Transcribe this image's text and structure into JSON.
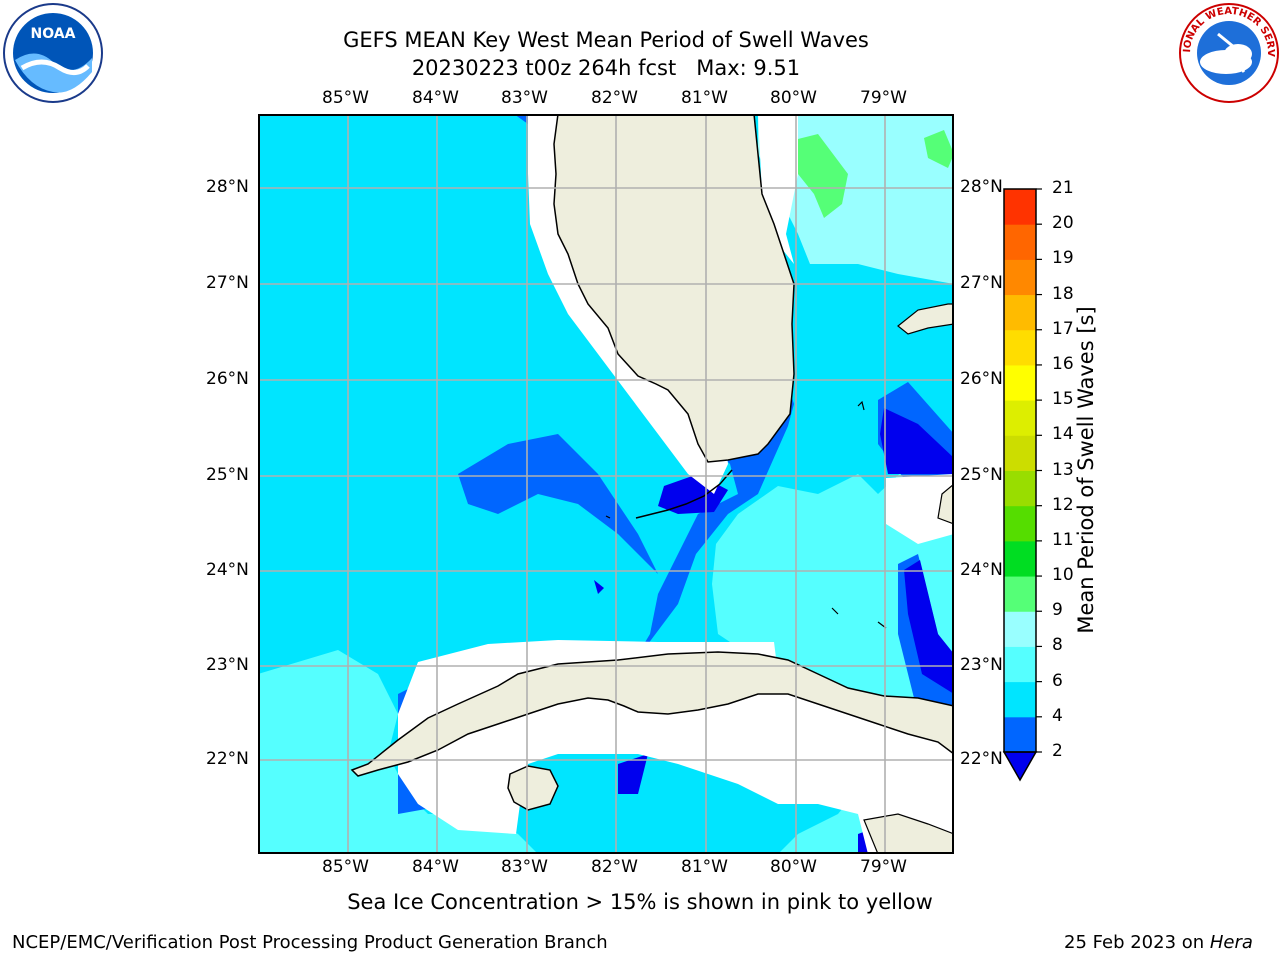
{
  "header": {
    "title_line1": "GEFS MEAN Key West Mean Period of Swell Waves",
    "title_line2": "20230223 t00z 264h fcst   Max: 9.51"
  },
  "logos": {
    "left": {
      "icon": "noaa-logo-icon",
      "text": "NOAA"
    },
    "right": {
      "icon": "nws-logo-icon",
      "text": "NATIONAL WEATHER SERVICE"
    }
  },
  "map": {
    "lon_labels": [
      "85°W",
      "84°W",
      "83°W",
      "82°W",
      "81°W",
      "80°W",
      "79°W"
    ],
    "lat_labels": [
      "28°N",
      "27°N",
      "26°N",
      "25°N",
      "24°N",
      "23°N",
      "22°N"
    ],
    "land_color": "#eeeedd",
    "grid_color": "#b0b0b0"
  },
  "colorbar": {
    "label": "Mean Period of Swell Waves [s]",
    "ticks": [
      "2",
      "4",
      "6",
      "8",
      "9",
      "10",
      "11",
      "12",
      "13",
      "14",
      "15",
      "16",
      "17",
      "18",
      "19",
      "20",
      "21"
    ],
    "colors": [
      "#0066ff",
      "#00e5ff",
      "#55ffff",
      "#99ffff",
      "#55ff77",
      "#00dd22",
      "#55dd00",
      "#99dd00",
      "#ccdd00",
      "#ddee00",
      "#ffff00",
      "#ffdd00",
      "#ffbb00",
      "#ff8800",
      "#ff6600",
      "#ff3300",
      "#ff0000"
    ],
    "extend_color": "#0000ee"
  },
  "footer": {
    "note": "Sea Ice Concentration > 15% is shown in pink to yellow",
    "credit": "NCEP/EMC/Verification Post Processing Product Generation Branch",
    "date": "25 Feb 2023 on ",
    "host": "Hera"
  }
}
